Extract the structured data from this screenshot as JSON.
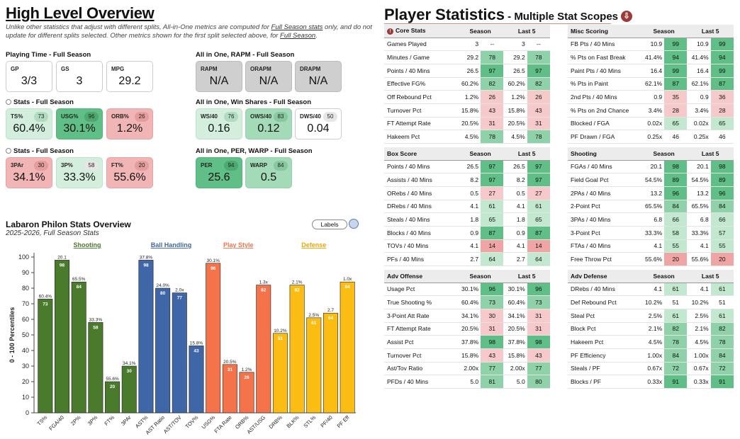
{
  "overview": {
    "title": "High Level Overview",
    "disclaimer_pre": "Unlike other statistics that adjust with different splits, All-in-One metrics are computed for ",
    "disclaimer_link1": "Full Season stats",
    "disclaimer_mid": " only, and do not update for different splits selected. Other metrics shown for the first split selected above, for ",
    "disclaimer_link2": "Full Season",
    "disclaimer_end": "."
  },
  "sections": {
    "playing_time": "Playing Time - Full Season",
    "rapm": "All in One, RAPM - Full Season",
    "stats1": "Stats - Full Season",
    "winshares": "All in One, Win Shares - Full Season",
    "stats2": "Stats - Full Season",
    "per_warp": "All in One, PER, WARP - Full Season"
  },
  "cards": {
    "gp": {
      "label": "GP",
      "value": "3/3"
    },
    "gs": {
      "label": "GS",
      "value": "3"
    },
    "mpg": {
      "label": "MPG",
      "value": "29.2"
    },
    "rapm": {
      "label": "RAPM",
      "value": "N/A"
    },
    "orapm": {
      "label": "ORAPM",
      "value": "N/A"
    },
    "drapm": {
      "label": "DRAPM",
      "value": "N/A"
    },
    "ts": {
      "label": "TS%",
      "value": "60.4%",
      "pct": "73"
    },
    "usg": {
      "label": "USG%",
      "value": "30.1%",
      "pct": "96"
    },
    "orb": {
      "label": "ORB%",
      "value": "1.2%",
      "pct": "26"
    },
    "ws40": {
      "label": "WS/40",
      "value": "0.16",
      "pct": "76"
    },
    "ows40": {
      "label": "OWS/40",
      "value": "0.12",
      "pct": "83"
    },
    "dws40": {
      "label": "DWS/40",
      "value": "0.04",
      "pct": "50"
    },
    "3par": {
      "label": "3PAr",
      "value": "34.1%",
      "pct": "30"
    },
    "3p": {
      "label": "3P%",
      "value": "33.3%",
      "pct": "58"
    },
    "ft": {
      "label": "FT%",
      "value": "55.6%",
      "pct": "20"
    },
    "per": {
      "label": "PER",
      "value": "25.6",
      "pct": "94"
    },
    "warp": {
      "label": "WARP",
      "value": "0.5",
      "pct": "84"
    }
  },
  "player_stats": {
    "title": "Player Statistics",
    "subtitle": " - Multiple Stat Scopes",
    "download_icon": "download-icon",
    "col_season": "Season",
    "col_last5": "Last 5",
    "tables": {
      "core": {
        "title": "Core Stats",
        "rows": [
          [
            "Games Played",
            "3",
            "--",
            "3",
            "--"
          ],
          [
            "Minutes / Game",
            "29.2",
            "78",
            "29.2",
            "78"
          ],
          [
            "Points / 40 Mins",
            "26.5",
            "97",
            "26.5",
            "97"
          ],
          [
            "Effective FG%",
            "60.2%",
            "82",
            "60.2%",
            "82"
          ],
          [
            "Off Rebound Pct",
            "1.2%",
            "26",
            "1.2%",
            "26"
          ],
          [
            "Turnover Pct",
            "15.8%",
            "43",
            "15.8%",
            "43"
          ],
          [
            "FT Attempt Rate",
            "20.5%",
            "31",
            "20.5%",
            "31"
          ],
          [
            "Hakeem Pct",
            "4.5%",
            "78",
            "4.5%",
            "78"
          ]
        ]
      },
      "misc": {
        "title": "Misc Scoring",
        "rows": [
          [
            "FB Pts / 40 Mins",
            "10.9",
            "99",
            "10.9",
            "99"
          ],
          [
            "% Pts on Fast Break",
            "41.4%",
            "94",
            "41.4%",
            "94"
          ],
          [
            "Paint Pts / 40 Mins",
            "16.4",
            "99",
            "16.4",
            "99"
          ],
          [
            "% Pts in Paint",
            "62.1%",
            "87",
            "62.1%",
            "87"
          ],
          [
            "2nd Pts / 40 Mins",
            "0.9",
            "35",
            "0.9",
            "36"
          ],
          [
            "% Pts on 2nd Chance",
            "3.4%",
            "28",
            "3.4%",
            "28"
          ],
          [
            "Blocked / FGA",
            "0.02x",
            "65",
            "0.02x",
            "65"
          ],
          [
            "PF Drawn / FGA",
            "0.25x",
            "46",
            "0.25x",
            "46"
          ]
        ]
      },
      "box": {
        "title": "Box Score",
        "rows": [
          [
            "Points / 40 Mins",
            "26.5",
            "97",
            "26.5",
            "97"
          ],
          [
            "Assists / 40 Mins",
            "8.2",
            "97",
            "8.2",
            "97"
          ],
          [
            "ORebs / 40 Mins",
            "0.5",
            "27",
            "0.5",
            "27"
          ],
          [
            "DRebs / 40 Mins",
            "4.1",
            "61",
            "4.1",
            "61"
          ],
          [
            "Steals / 40 Mins",
            "1.8",
            "65",
            "1.8",
            "65"
          ],
          [
            "Blocks / 40 Mins",
            "0.9",
            "87",
            "0.9",
            "87"
          ],
          [
            "TOVs / 40 Mins",
            "4.1",
            "14",
            "4.1",
            "14"
          ],
          [
            "PFs / 40 Mins",
            "2.7",
            "64",
            "2.7",
            "64"
          ]
        ]
      },
      "shooting": {
        "title": "Shooting",
        "rows": [
          [
            "FGAs / 40 Mins",
            "20.1",
            "98",
            "20.1",
            "98"
          ],
          [
            "Field Goal Pct",
            "54.5%",
            "89",
            "54.5%",
            "89"
          ],
          [
            "2PAs / 40 Mins",
            "13.2",
            "96",
            "13.2",
            "96"
          ],
          [
            "2-Point Pct",
            "65.5%",
            "84",
            "65.5%",
            "84"
          ],
          [
            "3PAs / 40 Mins",
            "6.8",
            "66",
            "6.8",
            "66"
          ],
          [
            "3-Point Pct",
            "33.3%",
            "58",
            "33.3%",
            "57"
          ],
          [
            "FTAs / 40 Mins",
            "4.1",
            "55",
            "4.1",
            "55"
          ],
          [
            "Free Throw Pct",
            "55.6%",
            "20",
            "55.6%",
            "20"
          ]
        ]
      },
      "adv_off": {
        "title": "Adv Offense",
        "rows": [
          [
            "Usage Pct",
            "30.1%",
            "96",
            "30.1%",
            "96"
          ],
          [
            "True Shooting %",
            "60.4%",
            "73",
            "60.4%",
            "73"
          ],
          [
            "3-Point Att Rate",
            "34.1%",
            "30",
            "34.1%",
            "31"
          ],
          [
            "FT Attempt Rate",
            "20.5%",
            "31",
            "20.5%",
            "31"
          ],
          [
            "Assist Pct",
            "37.8%",
            "98",
            "37.8%",
            "98"
          ],
          [
            "Turnover Pct",
            "15.8%",
            "43",
            "15.8%",
            "43"
          ],
          [
            "Ast/Tov Ratio",
            "2.00x",
            "77",
            "2.00x",
            "77"
          ],
          [
            "PFDs / 40 Mins",
            "5.0",
            "81",
            "5.0",
            "80"
          ]
        ]
      },
      "adv_def": {
        "title": "Adv Defense",
        "rows": [
          [
            "DRebs / 40 Mins",
            "4.1",
            "61",
            "4.1",
            "61"
          ],
          [
            "Def Rebound Pct",
            "10.2%",
            "51",
            "10.2%",
            "51"
          ],
          [
            "Steal Pct",
            "2.5%",
            "61",
            "2.5%",
            "61"
          ],
          [
            "Block Pct",
            "2.1%",
            "82",
            "2.1%",
            "82"
          ],
          [
            "Hakeem Pct",
            "4.5%",
            "78",
            "4.5%",
            "78"
          ],
          [
            "PF Efficiency",
            "1.00x",
            "84",
            "1.00x",
            "84"
          ],
          [
            "Steals / PF",
            "0.67x",
            "72",
            "0.67x",
            "72"
          ],
          [
            "Blocks / PF",
            "0.33x",
            "91",
            "0.33x",
            "91"
          ]
        ]
      }
    }
  },
  "chart_controls": {
    "labels_button": "Labels"
  },
  "chart_data": {
    "type": "bar",
    "title": "Labaron Philon Stats Overview",
    "subtitle": "2025-2026, Full Season Stats",
    "ylabel": "0 - 100 Percentiles",
    "ylim": [
      0,
      100
    ],
    "yticks": [
      0,
      10,
      20,
      30,
      40,
      50,
      60,
      70,
      80,
      90,
      100
    ],
    "groups": [
      {
        "name": "Shooting",
        "color": "#4a7a2c",
        "label_color": "#4a7a2c"
      },
      {
        "name": "Ball Handling",
        "color": "#3f66a6",
        "label_color": "#3f66a6"
      },
      {
        "name": "Play Style",
        "color": "#f4734a",
        "label_color": "#f4734a"
      },
      {
        "name": "Defense",
        "color": "#fbbd14",
        "label_color": "#f0a400"
      }
    ],
    "categories": [
      "TS%",
      "FGA/40",
      "2P%",
      "3P%",
      "FT%",
      "3PAr",
      "AST%",
      "AST Ratio",
      "AST/TOV",
      "TOV%",
      "USG%",
      "FTA Rate",
      "ORB%",
      "AST/USG",
      "DRB%",
      "BLK%",
      "STL%",
      "PF/40",
      "PF Eff"
    ],
    "group_index": [
      0,
      0,
      0,
      0,
      0,
      0,
      1,
      1,
      1,
      1,
      2,
      2,
      2,
      2,
      3,
      3,
      3,
      3,
      3
    ],
    "values": [
      73,
      98,
      84,
      58,
      20,
      30,
      98,
      80,
      77,
      43,
      96,
      31,
      26,
      82,
      51,
      82,
      61,
      64,
      84
    ],
    "raw_labels": [
      "60.4%",
      "20.1",
      "65.5%",
      "33.3%",
      "55.6%",
      "34.1%",
      "37.8%",
      "24.0%",
      "2.0x",
      "15.8%",
      "30.1%",
      "20.5%",
      "1.2%",
      "1.3x",
      "10.2%",
      "2.1%",
      "2.5%",
      "2.7",
      "1.0x"
    ]
  }
}
